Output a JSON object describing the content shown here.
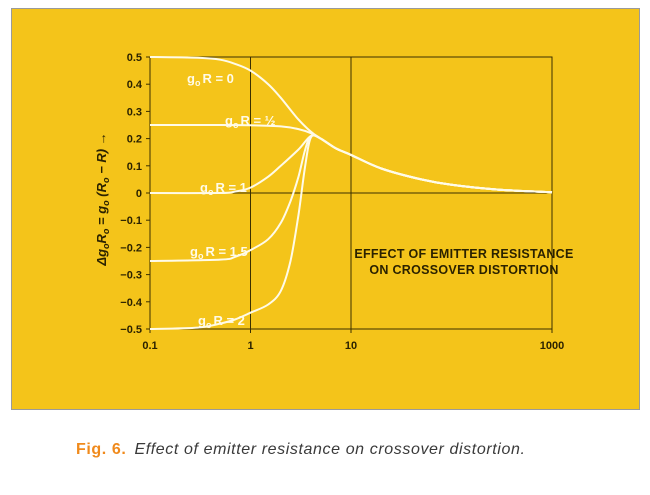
{
  "chart_data": {
    "type": "line",
    "title": "",
    "annotation": [
      "EFFECT OF EMITTER RESISTANCE",
      "ON CROSSOVER DISTORTION"
    ],
    "xlabel": "",
    "ylabel_parts": [
      "Δg",
      "o",
      "R",
      "o",
      " = g",
      "o",
      " (R",
      "o",
      " − R) →"
    ],
    "x_scale": "log",
    "xlim": [
      0.1,
      1000
    ],
    "ylim": [
      -0.5,
      0.5
    ],
    "x_ticks": [
      "0.1",
      "1",
      "10",
      "1000"
    ],
    "x_tick_values": [
      0.1,
      1,
      10,
      1000
    ],
    "y_ticks": [
      "0.5",
      "0.4",
      "0.3",
      "0.2",
      "0.1",
      "0",
      "−0.1",
      "−0.2",
      "−0.3",
      "−0.4",
      "−0.5"
    ],
    "y_tick_values": [
      0.5,
      0.4,
      0.3,
      0.2,
      0.1,
      0,
      -0.1,
      -0.2,
      -0.3,
      -0.4,
      -0.5
    ],
    "grid": true,
    "background_color": "#f4c41a",
    "line_color": "#fffbe8",
    "series": [
      {
        "label_main": "g",
        "label_sub": "o",
        "label_rest": "R = 0",
        "x": [
          0.1,
          0.3,
          0.5,
          0.7,
          1,
          1.5,
          2,
          3,
          4,
          5,
          7,
          10,
          20,
          50,
          100,
          300,
          1000
        ],
        "y": [
          0.5,
          0.497,
          0.49,
          0.475,
          0.45,
          0.4,
          0.35,
          0.27,
          0.225,
          0.2,
          0.165,
          0.14,
          0.09,
          0.05,
          0.03,
          0.012,
          0.003
        ]
      },
      {
        "label_main": "g",
        "label_sub": "o",
        "label_rest": "R = ½",
        "x": [
          0.1,
          0.5,
          1,
          2,
          3,
          4,
          5,
          7,
          10,
          20,
          50,
          100,
          300,
          1000
        ],
        "y": [
          0.25,
          0.25,
          0.249,
          0.245,
          0.235,
          0.22,
          0.2,
          0.165,
          0.14,
          0.09,
          0.05,
          0.03,
          0.012,
          0.003
        ]
      },
      {
        "label_main": "g",
        "label_sub": "o",
        "label_rest": "R = 1",
        "x": [
          0.1,
          0.5,
          0.7,
          1,
          1.5,
          2,
          3,
          4,
          5,
          7,
          10,
          20,
          50,
          100,
          300,
          1000
        ],
        "y": [
          0,
          0,
          0.005,
          0.02,
          0.06,
          0.1,
          0.16,
          0.21,
          0.2,
          0.165,
          0.14,
          0.09,
          0.05,
          0.03,
          0.012,
          0.003
        ]
      },
      {
        "label_main": "g",
        "label_sub": "o",
        "label_rest": "R = 1.5",
        "x": [
          0.1,
          0.5,
          0.7,
          1,
          1.5,
          2,
          2.5,
          3,
          3.5,
          4,
          5,
          7,
          10,
          20,
          50,
          100,
          300,
          1000
        ],
        "y": [
          -0.25,
          -0.245,
          -0.235,
          -0.21,
          -0.17,
          -0.11,
          -0.03,
          0.06,
          0.16,
          0.21,
          0.2,
          0.165,
          0.14,
          0.09,
          0.05,
          0.03,
          0.012,
          0.003
        ]
      },
      {
        "label_main": "g",
        "label_sub": "o",
        "label_rest": "R = 2",
        "x": [
          0.1,
          0.3,
          0.5,
          0.7,
          1,
          1.5,
          2,
          2.5,
          3,
          3.5,
          4,
          5,
          7,
          10,
          20,
          50,
          100,
          300,
          1000
        ],
        "y": [
          -0.5,
          -0.495,
          -0.48,
          -0.465,
          -0.44,
          -0.41,
          -0.36,
          -0.25,
          -0.08,
          0.1,
          0.205,
          0.2,
          0.165,
          0.14,
          0.09,
          0.05,
          0.03,
          0.012,
          0.003
        ]
      }
    ]
  },
  "caption": {
    "label": "Fig. 6.",
    "text": "Effect of emitter resistance on crossover distortion."
  }
}
